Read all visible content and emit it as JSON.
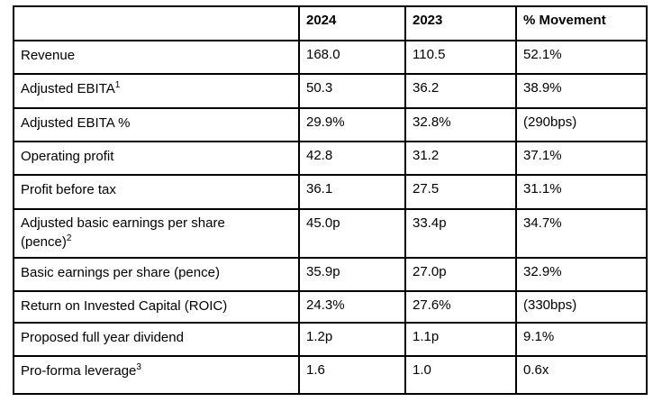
{
  "page": {
    "background_color": "#ffffff",
    "border_color": "#000000",
    "text_color": "#000000"
  },
  "table": {
    "columns": {
      "label": "",
      "y2024": "2024",
      "y2023": "2023",
      "movement": "% Movement"
    },
    "rows": [
      {
        "label": "Revenue",
        "sup": "",
        "y2024": "168.0",
        "y2023": "110.5",
        "movement": "52.1%"
      },
      {
        "label": "Adjusted EBITA",
        "sup": "1",
        "y2024": "50.3",
        "y2023": "36.2",
        "movement": "38.9%"
      },
      {
        "label": "Adjusted EBITA %",
        "sup": "",
        "y2024": "29.9%",
        "y2023": "32.8%",
        "movement": "(290bps)"
      },
      {
        "label": "Operating profit",
        "sup": "",
        "y2024": "42.8",
        "y2023": "31.2",
        "movement": "37.1%"
      },
      {
        "label": "Profit before tax",
        "sup": "",
        "y2024": "36.1",
        "y2023": "27.5",
        "movement": "31.1%"
      },
      {
        "label": "Adjusted basic earnings per share (pence)",
        "sup": "2",
        "y2024": "45.0p",
        "y2023": "33.4p",
        "movement": "34.7%"
      },
      {
        "label": "Basic earnings per share (pence)",
        "sup": "",
        "y2024": "35.9p",
        "y2023": "27.0p",
        "movement": "32.9%"
      },
      {
        "label": "Return on Invested Capital (ROIC)",
        "sup": "",
        "y2024": "24.3%",
        "y2023": "27.6%",
        "movement": "(330bps)"
      },
      {
        "label": "Proposed full year dividend",
        "sup": "",
        "y2024": "1.2p",
        "y2023": "1.1p",
        "movement": "9.1%"
      },
      {
        "label": "Pro-forma leverage",
        "sup": "3",
        "y2024": "1.6",
        "y2023": "1.0",
        "movement": "0.6x"
      }
    ]
  }
}
